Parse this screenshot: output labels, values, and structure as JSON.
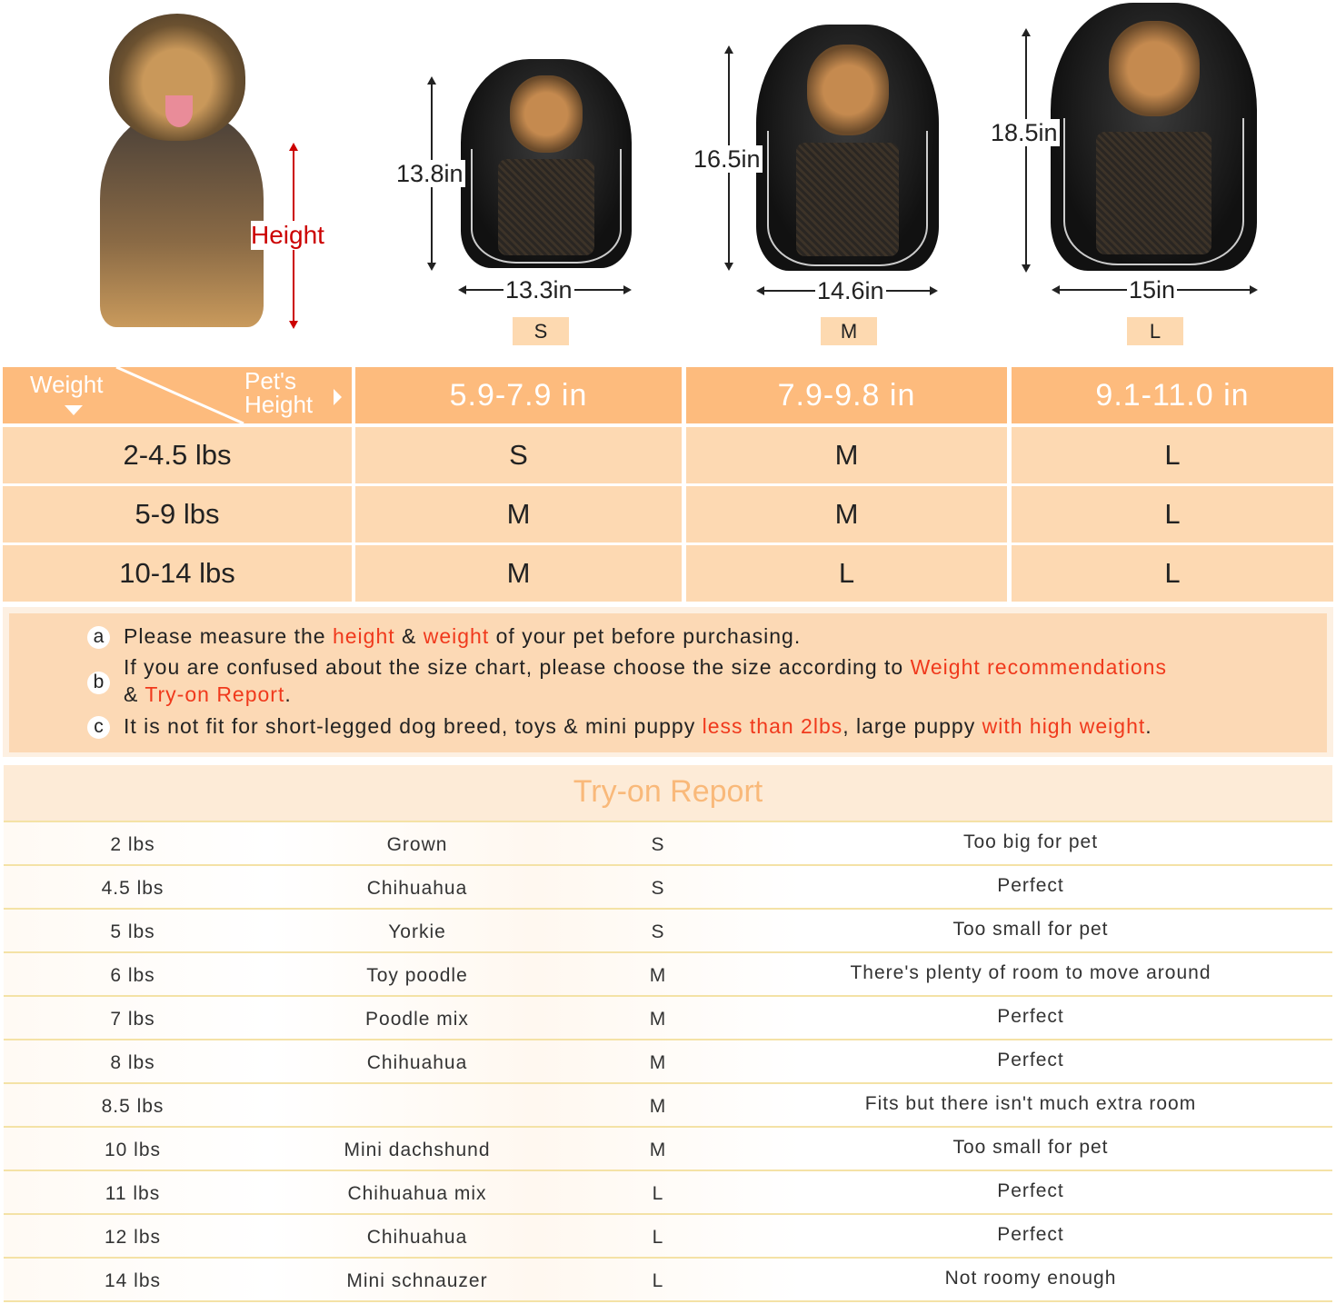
{
  "top": {
    "height_label": "Height",
    "sizes": [
      {
        "size": "S",
        "height": "13.8in",
        "width": "13.3in"
      },
      {
        "size": "M",
        "height": "16.5in",
        "width": "14.6in"
      },
      {
        "size": "L",
        "height": "18.5in",
        "width": "15in"
      }
    ]
  },
  "size_table": {
    "corner_weight": "Weight",
    "corner_height": "Pet's Height",
    "columns": [
      "5.9-7.9 in",
      "7.9-9.8 in",
      "9.1-11.0 in"
    ],
    "rows": [
      {
        "weight": "2-4.5 lbs",
        "sizes": [
          "S",
          "M",
          "L"
        ]
      },
      {
        "weight": "5-9 lbs",
        "sizes": [
          "M",
          "M",
          "L"
        ]
      },
      {
        "weight": "10-14 lbs",
        "sizes": [
          "M",
          "L",
          "L"
        ]
      }
    ]
  },
  "notes": {
    "a": {
      "marker": "a",
      "t1": "Please measure the ",
      "h1": "height",
      "t2": " & ",
      "h2": "weight",
      "t3": " of your pet before purchasing."
    },
    "b": {
      "marker": "b",
      "t1": "If you are confused about the size chart, please choose the size according to ",
      "h1": "Weight recommendations",
      "t2": "& ",
      "h2": "Try-on Report",
      "t3": "."
    },
    "c": {
      "marker": "c",
      "t1": "It is not fit for short-legged dog breed, toys & mini puppy ",
      "h1": "less than 2lbs",
      "t2": ", large puppy ",
      "h2": "with high weight",
      "t3": "."
    }
  },
  "colors": {
    "header": "#fdbb7d",
    "cell": "#fdd9b2",
    "highlight": "#f0391c",
    "height_arrow": "#cc0000"
  },
  "report": {
    "title": "Try-on Report",
    "rows": [
      [
        "2 lbs",
        "Grown",
        "S",
        "Too big for pet"
      ],
      [
        "4.5 lbs",
        "Chihuahua",
        "S",
        "Perfect"
      ],
      [
        "5 lbs",
        "Yorkie",
        "S",
        "Too small for pet"
      ],
      [
        "6 lbs",
        "Toy poodle",
        "M",
        "There's plenty of room to move around"
      ],
      [
        "7 lbs",
        "Poodle mix",
        "M",
        "Perfect"
      ],
      [
        "8 lbs",
        "Chihuahua",
        "M",
        "Perfect"
      ],
      [
        "8.5 lbs",
        "",
        "M",
        "Fits but there isn't much extra room"
      ],
      [
        "10 lbs",
        "Mini dachshund",
        "M",
        "Too small for pet"
      ],
      [
        "11 lbs",
        "Chihuahua mix",
        "L",
        "Perfect"
      ],
      [
        "12 lbs",
        "Chihuahua",
        "L",
        "Perfect"
      ],
      [
        "14 lbs",
        "Mini schnauzer",
        "L",
        "Not roomy enough"
      ]
    ]
  }
}
